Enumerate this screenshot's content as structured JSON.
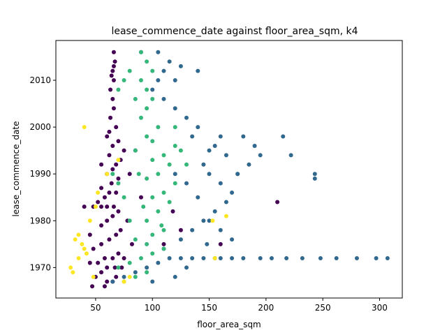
{
  "chart_data": {
    "type": "scatter",
    "title": "lease_commence_date against floor_area_sqm, k4",
    "xlabel": "floor_area_sqm",
    "ylabel": "lease_commence_date",
    "xlim": [
      15,
      320
    ],
    "ylim": [
      1963.5,
      2018.5
    ],
    "xticks": [
      50,
      100,
      150,
      200,
      250,
      300
    ],
    "yticks": [
      1970,
      1980,
      1990,
      2000,
      2010
    ],
    "grid": false,
    "legend": "none",
    "colors": {
      "cluster_0": "#440154",
      "cluster_1": "#31688e",
      "cluster_2": "#35b779",
      "cluster_3": "#fde725"
    },
    "series": [
      {
        "color": "#440154",
        "points": [
          [
            60,
            1967
          ],
          [
            65,
            1967
          ],
          [
            68,
            1968
          ],
          [
            55,
            1969
          ],
          [
            60,
            1970
          ],
          [
            67,
            1970
          ],
          [
            73,
            1970
          ],
          [
            45,
            1971
          ],
          [
            52,
            1971
          ],
          [
            58,
            1972
          ],
          [
            65,
            1972
          ],
          [
            70,
            1973
          ],
          [
            48,
            1974
          ],
          [
            55,
            1975
          ],
          [
            62,
            1976
          ],
          [
            45,
            1977
          ],
          [
            68,
            1977
          ],
          [
            72,
            1978
          ],
          [
            55,
            1979
          ],
          [
            60,
            1980
          ],
          [
            65,
            1981
          ],
          [
            70,
            1982
          ],
          [
            40,
            1983
          ],
          [
            48,
            1983
          ],
          [
            55,
            1983
          ],
          [
            60,
            1983
          ],
          [
            66,
            1983
          ],
          [
            52,
            1984
          ],
          [
            58,
            1985
          ],
          [
            62,
            1986
          ],
          [
            68,
            1986
          ],
          [
            55,
            1987
          ],
          [
            64,
            1988
          ],
          [
            70,
            1989
          ],
          [
            60,
            1990
          ],
          [
            65,
            1991
          ],
          [
            55,
            1992
          ],
          [
            68,
            1992
          ],
          [
            72,
            1993
          ],
          [
            62,
            1994
          ],
          [
            75,
            1995
          ],
          [
            85,
            1995
          ],
          [
            65,
            1996
          ],
          [
            70,
            1997
          ],
          [
            60,
            1998
          ],
          [
            62,
            1999
          ],
          [
            68,
            2000
          ],
          [
            63,
            2002
          ],
          [
            66,
            2004
          ],
          [
            65,
            2006
          ],
          [
            63,
            2008
          ],
          [
            66,
            2010
          ],
          [
            64,
            2011
          ],
          [
            65,
            2012
          ],
          [
            66,
            2013
          ],
          [
            67,
            2014
          ],
          [
            66,
            2016
          ],
          [
            78,
            1980
          ],
          [
            82,
            1975
          ],
          [
            90,
            1985
          ],
          [
            110,
            1975
          ],
          [
            118,
            1982
          ],
          [
            125,
            1978
          ],
          [
            160,
            1975
          ],
          [
            210,
            1984
          ],
          [
            75,
            1972
          ],
          [
            50,
            1968
          ],
          [
            47,
            1966
          ],
          [
            58,
            1966
          ],
          [
            80,
            1990
          ]
        ]
      },
      {
        "color": "#31688e",
        "points": [
          [
            65,
            1967
          ],
          [
            75,
            1968
          ],
          [
            85,
            1969
          ],
          [
            95,
            1970
          ],
          [
            105,
            1971
          ],
          [
            115,
            1972
          ],
          [
            125,
            1972
          ],
          [
            135,
            1972
          ],
          [
            145,
            1972
          ],
          [
            155,
            1972
          ],
          [
            160,
            1972
          ],
          [
            170,
            1972
          ],
          [
            180,
            1972
          ],
          [
            195,
            1972
          ],
          [
            205,
            1972
          ],
          [
            218,
            1972
          ],
          [
            232,
            1972
          ],
          [
            248,
            1972
          ],
          [
            262,
            1972
          ],
          [
            280,
            1972
          ],
          [
            297,
            1972
          ],
          [
            307,
            1972
          ],
          [
            110,
            1974
          ],
          [
            125,
            1976
          ],
          [
            135,
            1978
          ],
          [
            145,
            1980
          ],
          [
            155,
            1982
          ],
          [
            165,
            1984
          ],
          [
            170,
            1986
          ],
          [
            160,
            1988
          ],
          [
            150,
            1990
          ],
          [
            175,
            1990
          ],
          [
            185,
            1992
          ],
          [
            195,
            1994
          ],
          [
            190,
            1996
          ],
          [
            180,
            1998
          ],
          [
            215,
            1998
          ],
          [
            222,
            1994
          ],
          [
            243,
            1990
          ],
          [
            243,
            1989
          ],
          [
            140,
            1985
          ],
          [
            130,
            1988
          ],
          [
            120,
            1990
          ],
          [
            150,
            1995
          ],
          [
            160,
            1998
          ],
          [
            140,
            2000
          ],
          [
            130,
            2002
          ],
          [
            120,
            2004
          ],
          [
            110,
            2006
          ],
          [
            100,
            2008
          ],
          [
            105,
            2010
          ],
          [
            110,
            2012
          ],
          [
            115,
            2014
          ],
          [
            105,
            2016
          ],
          [
            90,
            2016
          ],
          [
            125,
            2013
          ],
          [
            140,
            2012
          ],
          [
            120,
            2010
          ],
          [
            160,
            1978
          ],
          [
            170,
            1976
          ],
          [
            175,
            1990
          ],
          [
            165,
            1994
          ],
          [
            148,
            1975
          ],
          [
            130,
            1970
          ],
          [
            120,
            1968
          ],
          [
            100,
            1967
          ],
          [
            155,
            1996
          ],
          [
            145,
            1992
          ],
          [
            135,
            1998
          ],
          [
            150,
            1980
          ]
        ]
      },
      {
        "color": "#35b779",
        "points": [
          [
            75,
            1967
          ],
          [
            85,
            1968
          ],
          [
            95,
            1969
          ],
          [
            70,
            1970
          ],
          [
            80,
            1971
          ],
          [
            90,
            1972
          ],
          [
            100,
            1973
          ],
          [
            110,
            1974
          ],
          [
            95,
            1975
          ],
          [
            85,
            1976
          ],
          [
            100,
            1977
          ],
          [
            110,
            1978
          ],
          [
            95,
            1980
          ],
          [
            105,
            1982
          ],
          [
            115,
            1984
          ],
          [
            100,
            1985
          ],
          [
            110,
            1986
          ],
          [
            120,
            1988
          ],
          [
            95,
            1989
          ],
          [
            105,
            1990
          ],
          [
            115,
            1992
          ],
          [
            100,
            1993
          ],
          [
            110,
            1994
          ],
          [
            120,
            1996
          ],
          [
            100,
            1997
          ],
          [
            95,
            1998
          ],
          [
            105,
            2000
          ],
          [
            90,
            2002
          ],
          [
            95,
            2004
          ],
          [
            100,
            2006
          ],
          [
            95,
            2008
          ],
          [
            90,
            2010
          ],
          [
            100,
            2012
          ],
          [
            95,
            2014
          ],
          [
            90,
            2016
          ],
          [
            80,
            2012
          ],
          [
            75,
            2010
          ],
          [
            70,
            2008
          ],
          [
            85,
            2006
          ],
          [
            120,
            2000
          ],
          [
            125,
            1995
          ],
          [
            130,
            1992
          ],
          [
            80,
            1980
          ],
          [
            75,
            1985
          ],
          [
            70,
            1988
          ],
          [
            65,
            1990
          ],
          [
            85,
            1995
          ],
          [
            88,
            1990
          ],
          [
            92,
            1983
          ],
          [
            108,
            1979
          ]
        ]
      },
      {
        "color": "#fde725",
        "points": [
          [
            30,
            1969
          ],
          [
            28,
            1970
          ],
          [
            35,
            1972
          ],
          [
            40,
            1974
          ],
          [
            42,
            1973
          ],
          [
            32,
            1976
          ],
          [
            38,
            1975
          ],
          [
            45,
            1980
          ],
          [
            50,
            1983
          ],
          [
            52,
            1986
          ],
          [
            40,
            2000
          ],
          [
            60,
            1990
          ],
          [
            70,
            1993
          ],
          [
            75,
            1967
          ],
          [
            80,
            1968
          ],
          [
            155,
            1972
          ],
          [
            153,
            1980
          ],
          [
            165,
            1981
          ],
          [
            48,
            1968
          ],
          [
            35,
            1977
          ]
        ]
      }
    ]
  }
}
